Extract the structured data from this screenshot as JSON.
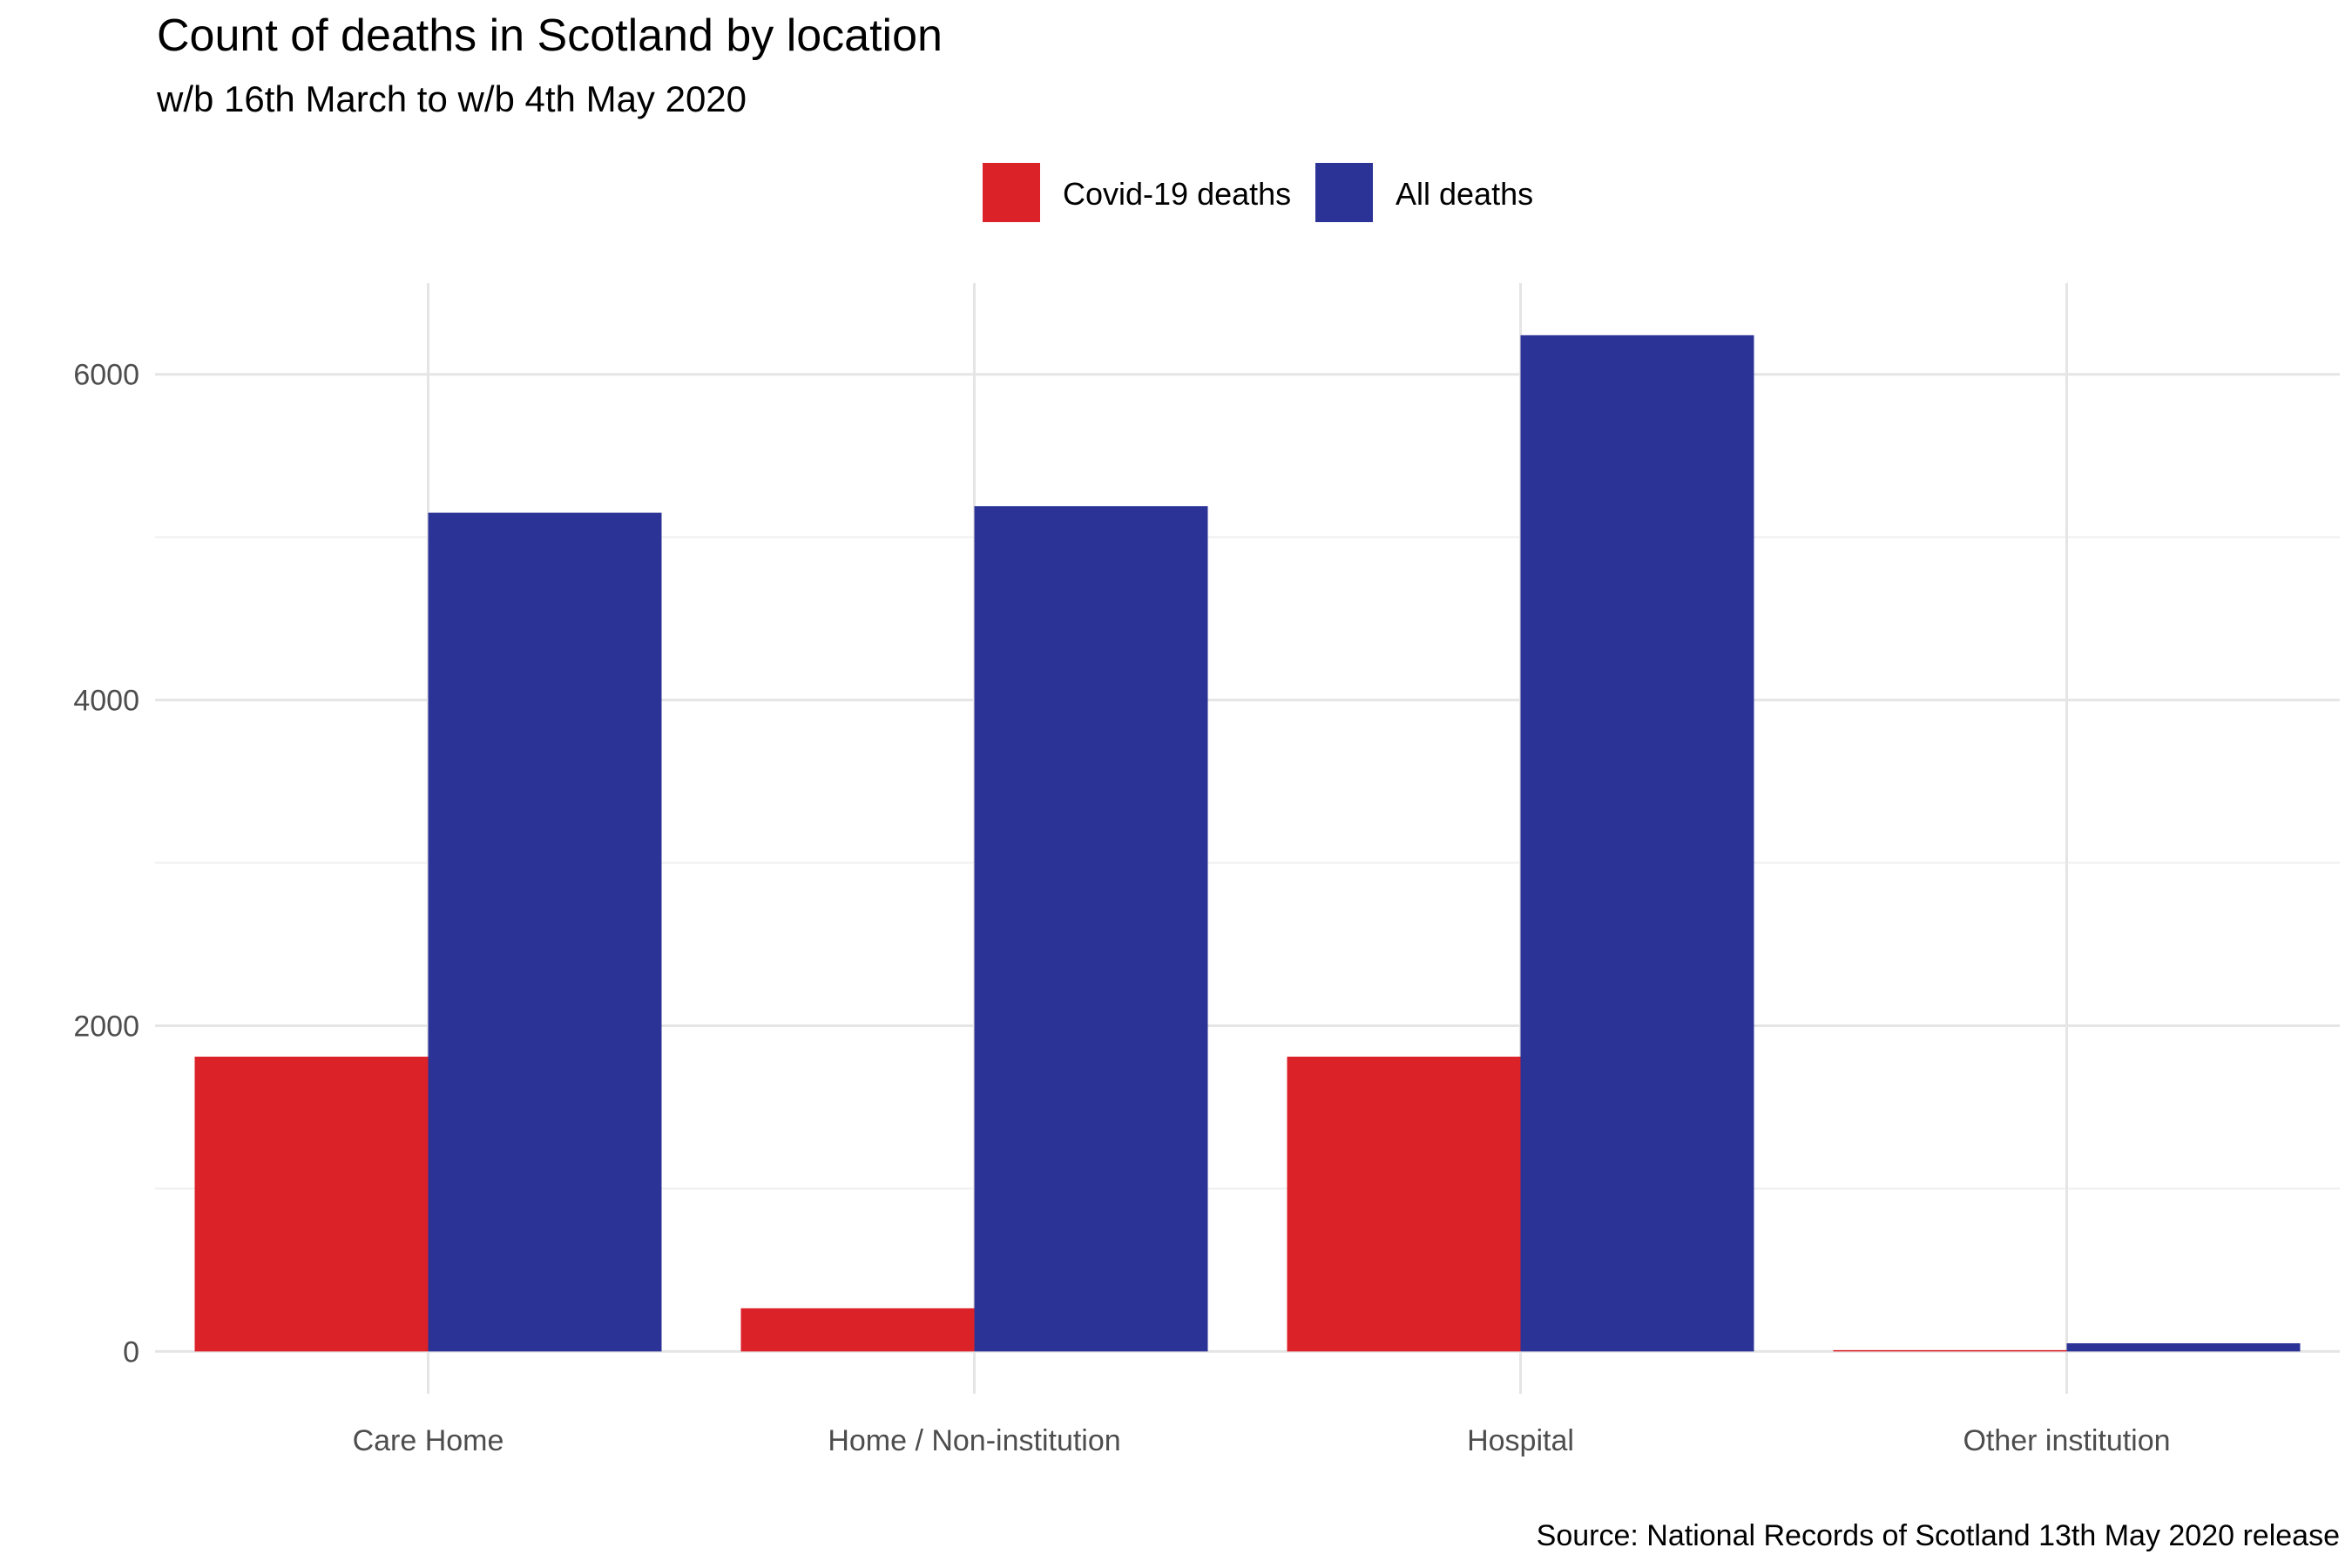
{
  "chart_data": {
    "type": "bar",
    "title": "Count of deaths in Scotland by location",
    "subtitle": "w/b 16th March to w/b 4th May 2020",
    "caption": "Source: National Records of Scotland 13th May 2020 release",
    "xlabel": "",
    "ylabel": "",
    "categories": [
      "Care Home",
      "Home / Non-institution",
      "Hospital",
      "Other institution"
    ],
    "series": [
      {
        "name": "Covid-19 deaths",
        "color": "#DC2229",
        "values": [
          1810,
          265,
          1810,
          8
        ]
      },
      {
        "name": "All deaths",
        "color": "#2C3397",
        "values": [
          5150,
          5190,
          6240,
          50
        ]
      }
    ],
    "ylim": [
      -260,
      6560
    ],
    "yticks": [
      0,
      2000,
      4000,
      6000
    ],
    "ytick_labels": [
      "0",
      "2000",
      "4000",
      "6000"
    ],
    "grid": true,
    "legend_position": "top"
  }
}
